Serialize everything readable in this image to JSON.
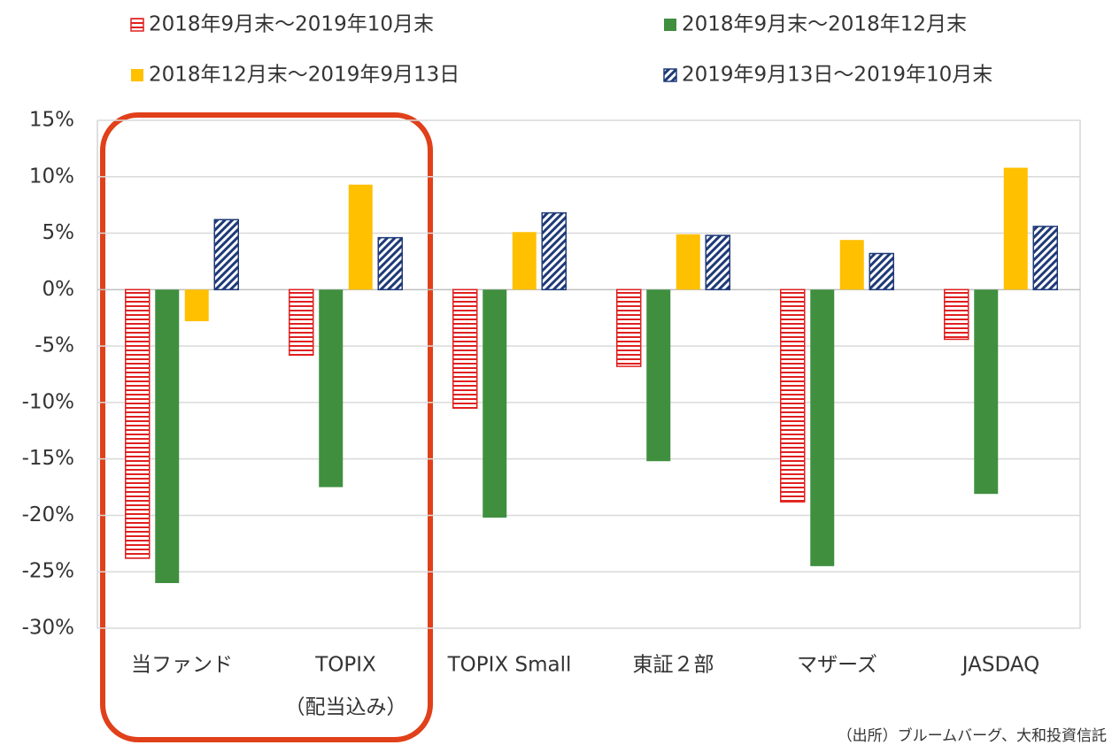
{
  "chart_data": {
    "type": "bar",
    "categories": [
      "当ファンド",
      [
        "TOPIX",
        "（配当込み）"
      ],
      "TOPIX Small",
      "東証２部",
      "マザーズ",
      "JASDAQ"
    ],
    "series": [
      {
        "name": "2018年9月末～2019年10月末",
        "color": "#e02020",
        "pattern": "horizontal",
        "values": [
          -23.8,
          -5.8,
          -10.5,
          -6.8,
          -18.8,
          -4.4
        ]
      },
      {
        "name": "2018年9月末～2018年12月末",
        "color": "#3f8f3f",
        "pattern": "solid",
        "values": [
          -26.0,
          -17.5,
          -20.2,
          -15.2,
          -24.5,
          -18.1
        ]
      },
      {
        "name": "2018年12月末～2019年9月13日",
        "color": "#ffc000",
        "pattern": "solid",
        "values": [
          -2.8,
          9.3,
          5.1,
          4.9,
          4.4,
          10.8
        ]
      },
      {
        "name": "2019年9月13日～2019年10月末",
        "color": "#1f3a78",
        "pattern": "diagonal",
        "values": [
          6.2,
          4.6,
          6.8,
          4.8,
          3.2,
          5.6
        ]
      }
    ],
    "ylim": [
      -30,
      15
    ],
    "yticks": [
      {
        "value": -30,
        "label": "-30%"
      },
      {
        "value": -25,
        "label": "-25%"
      },
      {
        "value": -20,
        "label": "-20%"
      },
      {
        "value": -15,
        "label": "-15%"
      },
      {
        "value": -10,
        "label": "-10%"
      },
      {
        "value": -5,
        "label": "-5%"
      },
      {
        "value": 0,
        "label": "0%"
      },
      {
        "value": 5,
        "label": "5%"
      },
      {
        "value": 10,
        "label": "10%"
      },
      {
        "value": 15,
        "label": "15%"
      }
    ],
    "grid": true,
    "source": "（出所）ブルームバーグ、大和投資信託"
  }
}
